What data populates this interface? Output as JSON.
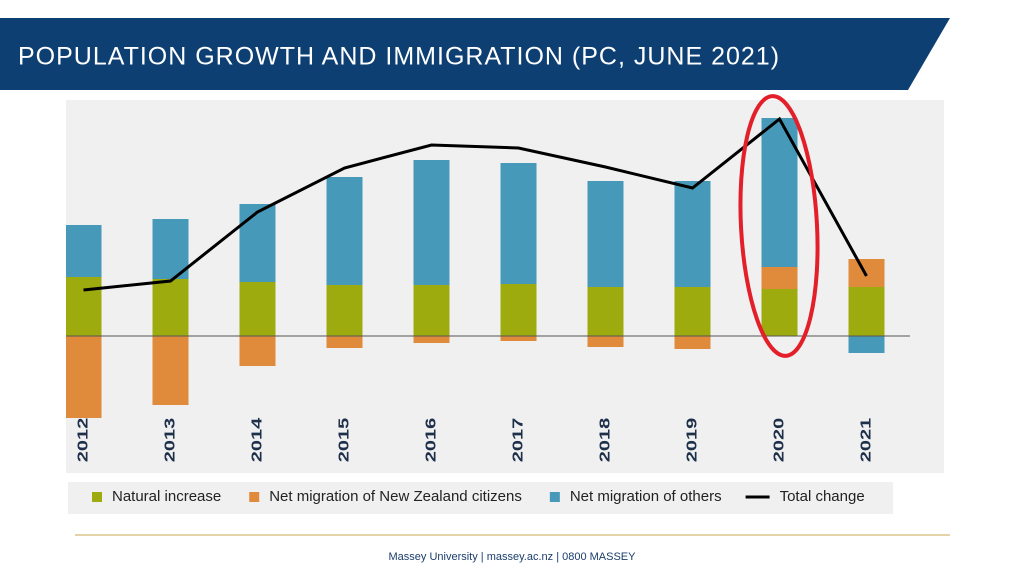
{
  "slide": {
    "title": "POPULATION GROWTH AND IMMIGRATION (PC, JUNE 2021)",
    "footer": "Massey University  |  massey.ac.nz  |  0800 MASSEY"
  },
  "chart_data": {
    "type": "stacked-bar-line",
    "categories": [
      "2012",
      "2013",
      "2014",
      "2015",
      "2016",
      "2017",
      "2018",
      "2019",
      "2020",
      "2021"
    ],
    "series": [
      {
        "name": "Natural increase",
        "color": "#9dab0e",
        "values": [
          29.5,
          28.5,
          27,
          25.5,
          25.5,
          26,
          24.5,
          24.5,
          23.5,
          24.5
        ]
      },
      {
        "name": "Net migration of New Zealand citizens",
        "color": "#e08a3c",
        "values": [
          -41,
          -34.5,
          -15,
          -6,
          -3.5,
          -2.5,
          -5.5,
          -6.5,
          11,
          14
        ]
      },
      {
        "name": "Net migration of others",
        "color": "#4699b8",
        "values": [
          26,
          30,
          39,
          54,
          62.5,
          60.5,
          53,
          53,
          74.5,
          -8.5
        ]
      }
    ],
    "line": {
      "name": "Total change",
      "color": "#000000",
      "values": [
        23,
        27.5,
        62,
        84,
        95.5,
        94,
        84.5,
        74,
        108.5,
        30
      ]
    },
    "ylim": [
      -70,
      120
    ]
  }
}
